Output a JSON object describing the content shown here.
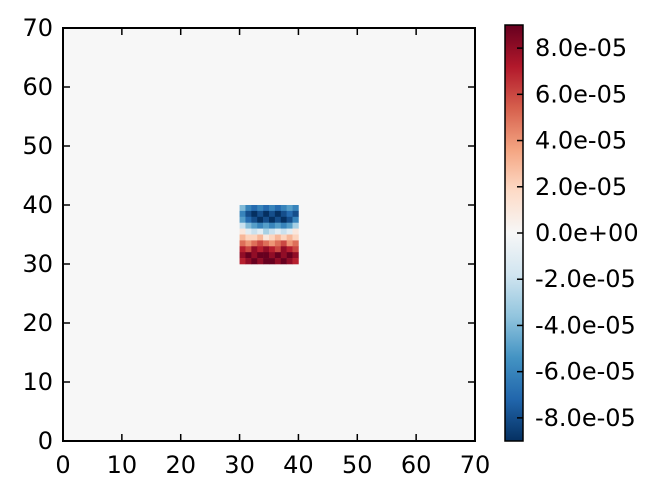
{
  "chart_data": {
    "type": "heatmap",
    "title": "",
    "xlabel": "",
    "ylabel": "",
    "xlim": [
      0,
      70
    ],
    "ylim": [
      0,
      70
    ],
    "x_ticks": [
      "0",
      "10",
      "20",
      "30",
      "40",
      "50",
      "60",
      "70"
    ],
    "y_ticks": [
      "0",
      "10",
      "20",
      "30",
      "40",
      "50",
      "60",
      "70"
    ],
    "background_value": 0,
    "colormap": "RdBu_r",
    "vmin": -9e-05,
    "vmax": 9e-05,
    "nonzero_region": {
      "x_range": [
        30,
        40
      ],
      "y_range": [
        30,
        40
      ]
    },
    "rows": [
      {
        "y": 39,
        "values": [
          -4e-05,
          -6e-05,
          -7e-05,
          -6e-05,
          -7e-05,
          -6e-05,
          -7e-05,
          -6e-05,
          -5e-05,
          -6e-05
        ]
      },
      {
        "y": 38,
        "values": [
          -6e-05,
          -8e-05,
          -9e-05,
          -8e-05,
          -9e-05,
          -8e-05,
          -9e-05,
          -8e-05,
          -7e-05,
          -8e-05
        ]
      },
      {
        "y": 37,
        "values": [
          -5e-05,
          -7e-05,
          -8e-05,
          -9e-05,
          -8e-05,
          -9e-05,
          -8e-05,
          -9e-05,
          -8e-05,
          -6e-05
        ]
      },
      {
        "y": 36,
        "values": [
          -2e-05,
          -4e-05,
          -5e-05,
          -6e-05,
          -5e-05,
          -6e-05,
          -5e-05,
          -6e-05,
          -5e-05,
          -3e-05
        ]
      },
      {
        "y": 35,
        "values": [
          1e-05,
          -1e-05,
          -2e-05,
          -1e-05,
          -3e-05,
          -2e-05,
          -1e-05,
          -2e-05,
          -1e-05,
          1e-05
        ]
      },
      {
        "y": 34,
        "values": [
          3e-05,
          2e-05,
          2e-05,
          3e-05,
          1e-05,
          2e-05,
          3e-05,
          2e-05,
          3e-05,
          2e-05
        ]
      },
      {
        "y": 33,
        "values": [
          5e-05,
          4e-05,
          5e-05,
          6e-05,
          5e-05,
          4e-05,
          5e-05,
          6e-05,
          4e-05,
          5e-05
        ]
      },
      {
        "y": 32,
        "values": [
          7e-05,
          6e-05,
          8e-05,
          7e-05,
          8e-05,
          7e-05,
          6e-05,
          8e-05,
          7e-05,
          6e-05
        ]
      },
      {
        "y": 31,
        "values": [
          8e-05,
          9e-05,
          8e-05,
          9e-05,
          9e-05,
          8e-05,
          9e-05,
          8e-05,
          9e-05,
          8e-05
        ]
      },
      {
        "y": 30,
        "values": [
          7e-05,
          8e-05,
          9e-05,
          8e-05,
          9e-05,
          9e-05,
          8e-05,
          9e-05,
          8e-05,
          7e-05
        ]
      }
    ],
    "colorbar": {
      "ticks": [
        {
          "value": 8e-05,
          "label": "8.0e-05"
        },
        {
          "value": 6e-05,
          "label": "6.0e-05"
        },
        {
          "value": 4e-05,
          "label": "4.0e-05"
        },
        {
          "value": 2e-05,
          "label": "2.0e-05"
        },
        {
          "value": 0,
          "label": "0.0e+00"
        },
        {
          "value": -2e-05,
          "label": "-2.0e-05"
        },
        {
          "value": -4e-05,
          "label": "-4.0e-05"
        },
        {
          "value": -6e-05,
          "label": "-6.0e-05"
        },
        {
          "value": -8e-05,
          "label": "-8.0e-05"
        }
      ]
    }
  }
}
